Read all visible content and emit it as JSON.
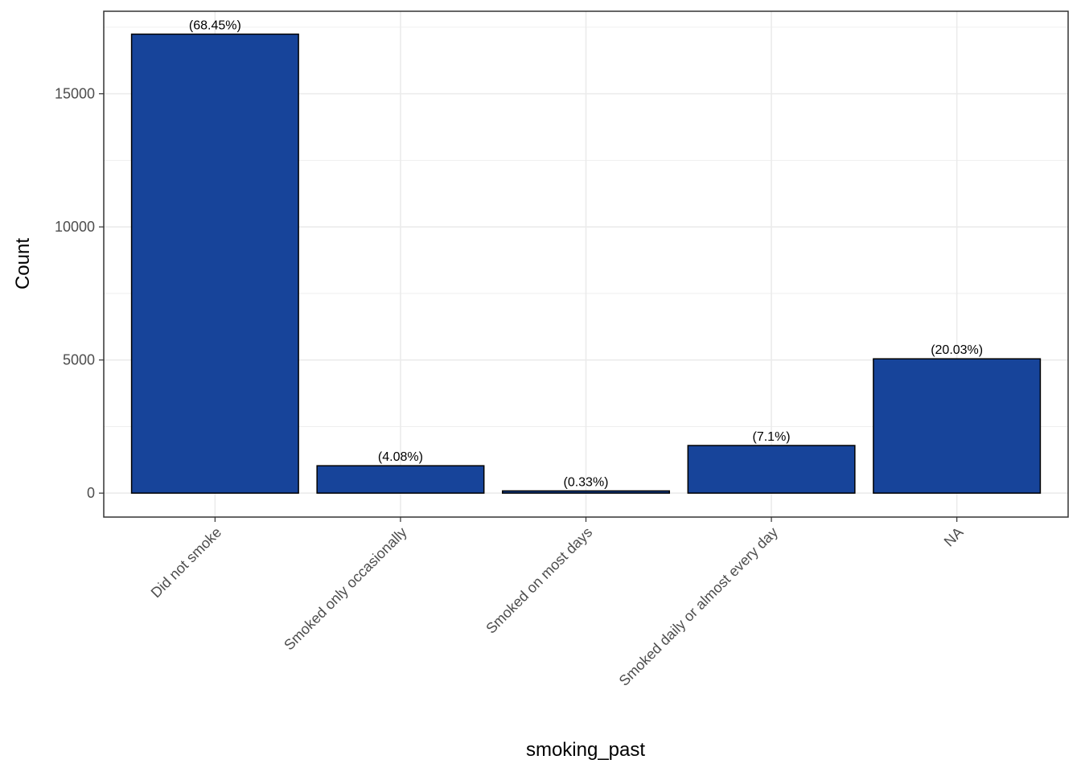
{
  "chart_data": {
    "type": "bar",
    "title": "",
    "xlabel": "smoking_past",
    "ylabel": "Count",
    "categories": [
      "Did not smoke",
      "Smoked only occasionally",
      "Smoked on most days",
      "Smoked daily or almost every day",
      "NA"
    ],
    "values": [
      17240,
      1028,
      83,
      1788,
      5044
    ],
    "data_labels": [
      "(68.45%)",
      "(4.08%)",
      "(0.33%)",
      "(7.1%)",
      "(20.03%)"
    ],
    "ylim": [
      -900,
      18100
    ],
    "y_ticks": [
      0,
      5000,
      10000,
      15000
    ],
    "y_tick_labels": [
      "0",
      "5000",
      "10000",
      "15000"
    ],
    "y_minor_ticks": [
      2500,
      7500,
      12500,
      17500
    ],
    "grid": true,
    "legend": "none",
    "colors": {
      "bar_fill": "#17449a",
      "bar_stroke": "#000000",
      "grid": "#ebebeb",
      "panel_border": "#333333",
      "tick_text": "#4d4d4d"
    }
  }
}
